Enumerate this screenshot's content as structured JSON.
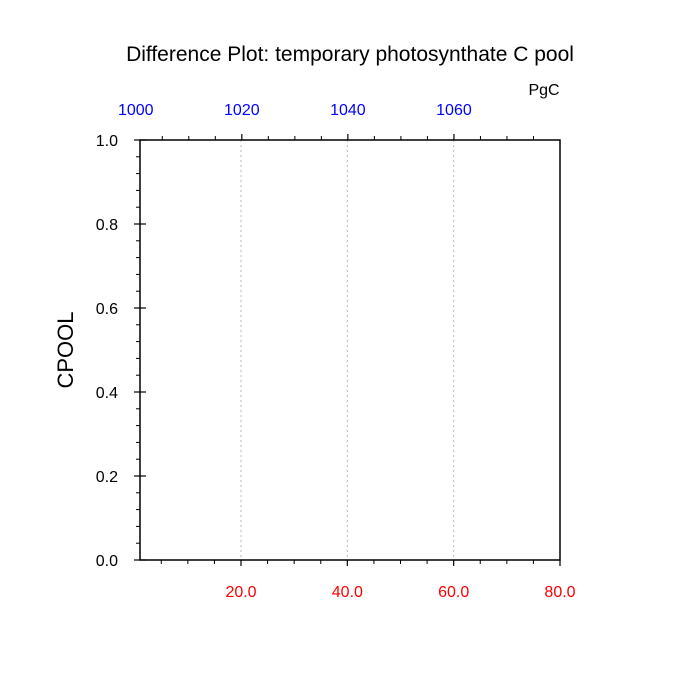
{
  "chart_data": {
    "type": "line",
    "title": "Difference Plot: temporary photosynthate C pool",
    "units_label": "PgC",
    "ylabel": "CPOOL",
    "xlabel": "",
    "grid": "vertical-dotted",
    "series": [],
    "y_axis": {
      "range": [
        0.0,
        1.0
      ],
      "major_ticks": [
        0.0,
        0.2,
        0.4,
        0.6,
        0.8,
        1.0
      ],
      "tick_labels": [
        "0.0",
        "0.2",
        "0.4",
        "0.6",
        "0.8",
        "1.0"
      ],
      "minor_step": 0.04,
      "label_color": "#000000"
    },
    "x_axis_bottom": {
      "range": [
        1.0,
        80.0
      ],
      "major_ticks": [
        20,
        40,
        60,
        80
      ],
      "tick_labels": [
        "20.0",
        "40.0",
        "60.0",
        "80.0"
      ],
      "minor_step": 5,
      "label_color": "#ff0000"
    },
    "x_axis_top": {
      "range": [
        1000.8,
        1080.0
      ],
      "major_ticks": [
        1000,
        1020,
        1040,
        1060
      ],
      "tick_labels": [
        "1000",
        "1020",
        "1040",
        "1060"
      ],
      "minor_step": 5,
      "label_color": "#0000ff"
    }
  }
}
